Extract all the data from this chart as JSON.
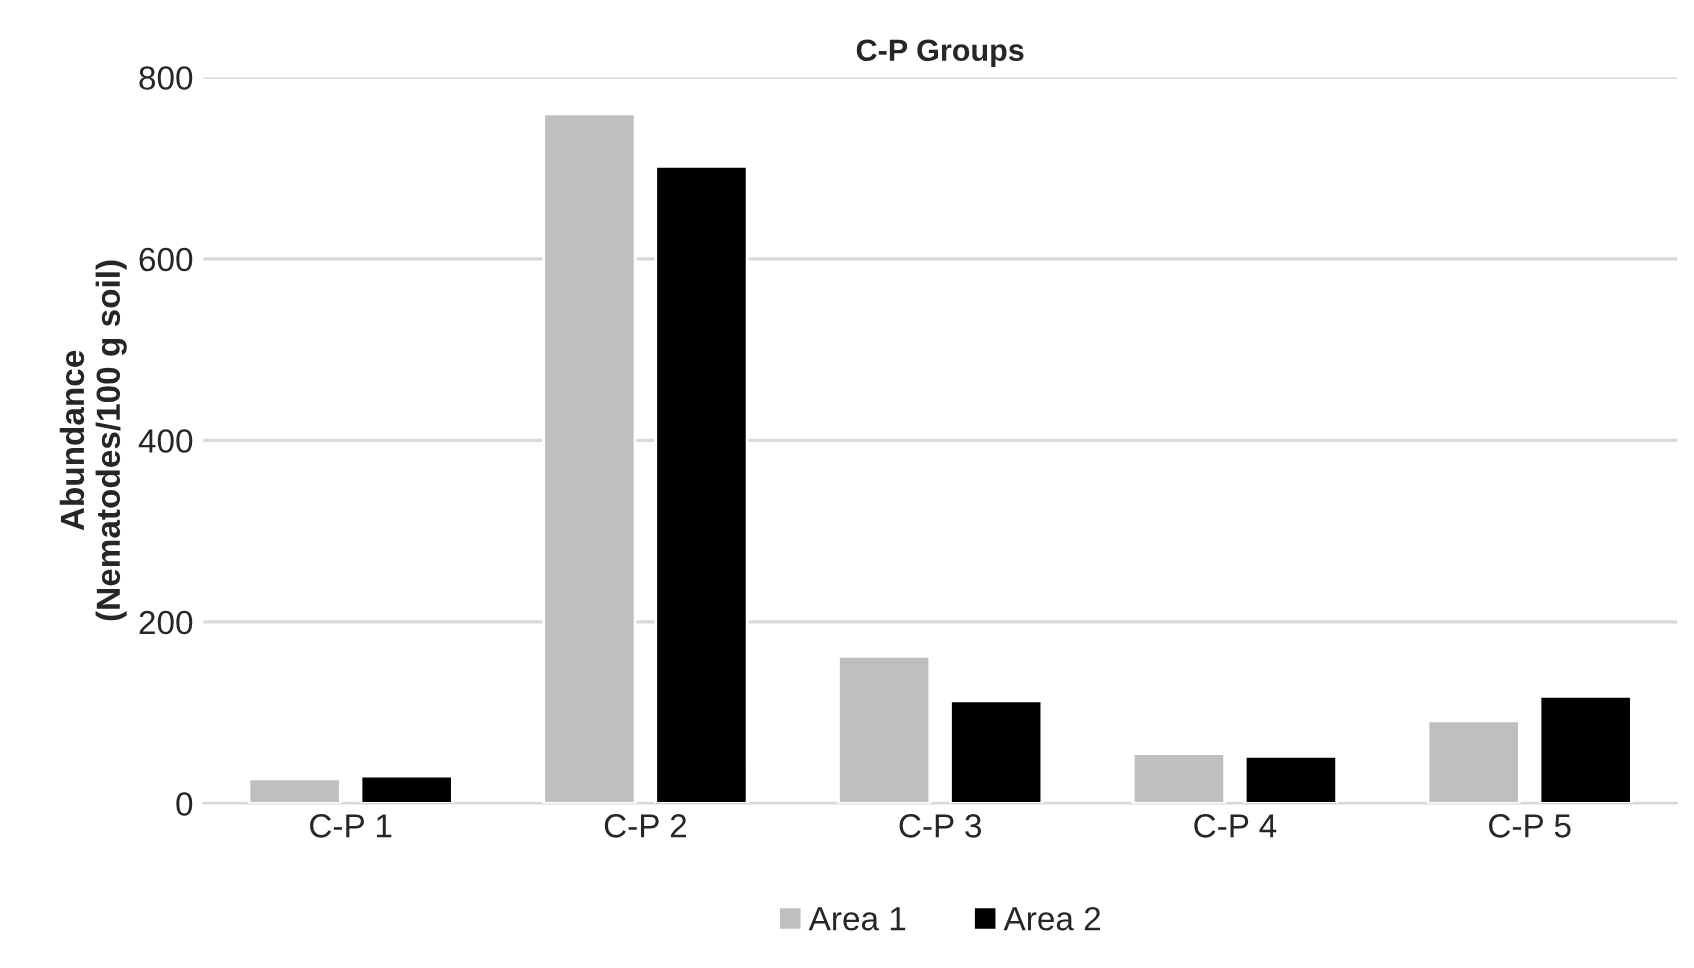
{
  "chart_data": {
    "type": "bar",
    "title": "C-P Groups",
    "ylabel": "Abundance\n(Nematodes/100 g soil)",
    "categories": [
      "C-P 1",
      "C-P 2",
      "C-P 3",
      "C-P 4",
      "C-P 5"
    ],
    "series": [
      {
        "name": "Area 1",
        "color": "#bfbfbf",
        "values": [
          27,
          760,
          162,
          55,
          91
        ]
      },
      {
        "name": "Area 2",
        "color": "#000000",
        "values": [
          30,
          702,
          113,
          52,
          118
        ]
      }
    ],
    "ylim": [
      0,
      800
    ],
    "yticks": [
      0,
      200,
      400,
      600,
      800
    ],
    "grid": "y",
    "legend": "bottom"
  }
}
